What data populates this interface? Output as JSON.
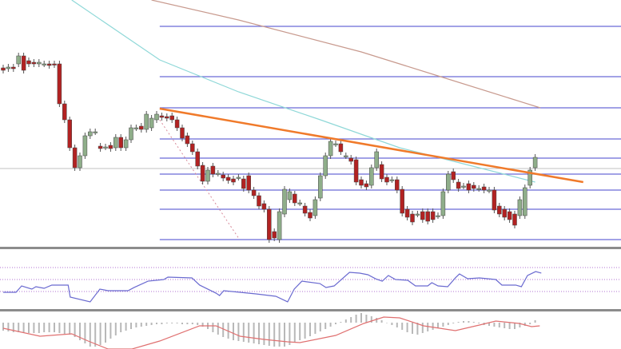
{
  "chart_data": {
    "type": "candlestick",
    "title": "",
    "xlabel": "",
    "ylabel": "",
    "grid": false,
    "colors": {
      "up": "#8fae8a",
      "down": "#b22222",
      "fib_levels": "#6b6bd6",
      "trendline": "#f07a2a",
      "ma_fast": "#8fd8d8",
      "ma_slow": "#c89a8e",
      "reference_line": "#c0c0c0",
      "dotted_line": "#d88a9a",
      "rsi": "#6a6ad0",
      "rsi_levels": "#b070d0",
      "macd_hist": "#b8b8b8",
      "macd_signal": "#e07070",
      "separator": "#8c8c8c"
    },
    "price_panel": {
      "ylim": [
        0,
        310
      ],
      "candles": [
        [
          225,
          222
        ],
        [
          224,
          226
        ],
        [
          226,
          224
        ],
        [
          230,
          240
        ],
        [
          240,
          222
        ],
        [
          234,
          230
        ],
        [
          232,
          230
        ],
        [
          230,
          232
        ],
        [
          230,
          230
        ],
        [
          230,
          228
        ],
        [
          230,
          229
        ],
        [
          230,
          180
        ],
        [
          180,
          160
        ],
        [
          160,
          125
        ],
        [
          125,
          100
        ],
        [
          100,
          115
        ],
        [
          115,
          140
        ],
        [
          140,
          145
        ],
        [
          145,
          145
        ],
        [
          127,
          124
        ],
        [
          126,
          126
        ],
        [
          128,
          124
        ],
        [
          125,
          138
        ],
        [
          138,
          125
        ],
        [
          125,
          135
        ],
        [
          135,
          150
        ],
        [
          150,
          150
        ],
        [
          152,
          148
        ],
        [
          148,
          167
        ],
        [
          150,
          162
        ],
        [
          160,
          167
        ],
        [
          165,
          163
        ],
        [
          164,
          162
        ],
        [
          165,
          160
        ],
        [
          160,
          150
        ],
        [
          150,
          137
        ],
        [
          140,
          130
        ],
        [
          130,
          120
        ],
        [
          120,
          102
        ],
        [
          103,
          83
        ],
        [
          83,
          97
        ],
        [
          102,
          92
        ],
        [
          93,
          93
        ],
        [
          91,
          87
        ],
        [
          88,
          84
        ],
        [
          86,
          82
        ],
        [
          88,
          88
        ],
        [
          86,
          74
        ],
        [
          90,
          72
        ],
        [
          72,
          65
        ],
        [
          65,
          52
        ],
        [
          55,
          48
        ],
        [
          48,
          10
        ],
        [
          20,
          12
        ],
        [
          10,
          45
        ],
        [
          42,
          73
        ],
        [
          60,
          70
        ],
        [
          67,
          56
        ],
        [
          56,
          56
        ],
        [
          52,
          43
        ],
        [
          44,
          37
        ],
        [
          40,
          60
        ],
        [
          62,
          90
        ],
        [
          90,
          115
        ],
        [
          115,
          133
        ],
        [
          130,
          130
        ],
        [
          130,
          120
        ],
        [
          115,
          115
        ],
        [
          112,
          108
        ],
        [
          110,
          82
        ],
        [
          85,
          78
        ],
        [
          80,
          76
        ],
        [
          78,
          100
        ],
        [
          100,
          120
        ],
        [
          104,
          86
        ],
        [
          88,
          82
        ],
        [
          85,
          85
        ],
        [
          85,
          72
        ],
        [
          73,
          43
        ],
        [
          48,
          38
        ],
        [
          42,
          32
        ],
        [
          42,
          42
        ],
        [
          45,
          35
        ],
        [
          45,
          33
        ],
        [
          45,
          35
        ],
        [
          40,
          40
        ],
        [
          40,
          70
        ],
        [
          72,
          92
        ],
        [
          95,
          85
        ],
        [
          82,
          74
        ],
        [
          77,
          77
        ],
        [
          80,
          72
        ],
        [
          78,
          74
        ],
        [
          74,
          74
        ],
        [
          76,
          72
        ],
        [
          72,
          72
        ],
        [
          72,
          47
        ],
        [
          52,
          42
        ],
        [
          48,
          38
        ],
        [
          45,
          35
        ],
        [
          42,
          28
        ],
        [
          40,
          60
        ],
        [
          40,
          75
        ],
        [
          78,
          97
        ],
        [
          100,
          113
        ]
      ],
      "fib_levels": [
        277,
        214,
        175,
        136,
        112,
        92,
        72,
        48,
        10
      ],
      "reference_level": 99,
      "trendline": [
        [
          30.6,
          174
        ],
        [
          113.4,
          82
        ]
      ],
      "dotted_line": [
        [
          30.6,
          160
        ],
        [
          46,
          12
        ]
      ],
      "ma_fast": [
        [
          13.4,
          310
        ],
        [
          30.6,
          235
        ],
        [
          46,
          195
        ],
        [
          62,
          160
        ],
        [
          77.5,
          125
        ],
        [
          93,
          100
        ],
        [
          104,
          82
        ]
      ],
      "ma_slow": [
        [
          29,
          310
        ],
        [
          46,
          285
        ],
        [
          70,
          245
        ],
        [
          85,
          215
        ],
        [
          105,
          175
        ]
      ]
    },
    "rsi_panel": {
      "ylim": [
        0,
        100
      ],
      "levels": [
        70,
        50,
        30
      ],
      "points": [
        [
          0,
          28.7
        ],
        [
          2.5,
          28.7
        ],
        [
          3.6,
          39.3
        ],
        [
          5.6,
          34
        ],
        [
          6.4,
          38
        ],
        [
          8,
          35.3
        ],
        [
          9.5,
          40.7
        ],
        [
          12.7,
          40.7
        ],
        [
          13.1,
          20.7
        ],
        [
          17,
          12.7
        ],
        [
          18.9,
          34
        ],
        [
          20.5,
          31.3
        ],
        [
          24.4,
          31.3
        ],
        [
          25.6,
          36.7
        ],
        [
          28.3,
          47.3
        ],
        [
          31.4,
          50
        ],
        [
          32.2,
          54
        ],
        [
          36.9,
          52.7
        ],
        [
          38.4,
          40.7
        ],
        [
          41.6,
          27.3
        ],
        [
          42.3,
          23.3
        ],
        [
          43.1,
          31.3
        ],
        [
          46.3,
          28.7
        ],
        [
          49.4,
          26
        ],
        [
          53.3,
          22
        ],
        [
          55.6,
          12.7
        ],
        [
          56.9,
          34
        ],
        [
          58.4,
          47.3
        ],
        [
          61.9,
          43.3
        ],
        [
          63.1,
          36.7
        ],
        [
          64.7,
          39.3
        ],
        [
          67.7,
          62
        ],
        [
          69.7,
          60.7
        ],
        [
          71.3,
          58
        ],
        [
          72.8,
          51.3
        ],
        [
          74.1,
          47.3
        ],
        [
          75.3,
          56.7
        ],
        [
          76.7,
          50
        ],
        [
          79.1,
          48.7
        ],
        [
          80.6,
          39.3
        ],
        [
          83,
          39.3
        ],
        [
          83.8,
          44.7
        ],
        [
          85,
          39.3
        ],
        [
          86.9,
          38
        ],
        [
          88.4,
          52.7
        ],
        [
          89.2,
          59.3
        ],
        [
          90.8,
          51.3
        ],
        [
          93.1,
          52.7
        ],
        [
          96.3,
          50
        ],
        [
          97.5,
          40.7
        ],
        [
          100.2,
          40.7
        ],
        [
          101.3,
          38
        ],
        [
          102.5,
          56.7
        ],
        [
          104.1,
          63.3
        ],
        [
          105.2,
          60.7
        ]
      ]
    },
    "macd_panel": {
      "histogram": [
        -10,
        -11,
        -12,
        -12,
        -12,
        -13,
        -13,
        -13,
        -12,
        -12,
        -12,
        -13,
        -14,
        -15,
        -18,
        -22,
        -26,
        -30,
        -30,
        -28,
        -25,
        -20,
        -16,
        -12,
        -10,
        -8,
        -6,
        -5,
        -4,
        -3,
        -2,
        -2,
        -1,
        -1,
        -1,
        -2,
        -2,
        -2,
        -3,
        -5,
        -8,
        -12,
        -15,
        -18,
        -20,
        -22,
        -23,
        -24,
        -25,
        -26,
        -27,
        -28,
        -29,
        -30,
        -30,
        -30,
        -28,
        -25,
        -22,
        -20,
        -17,
        -14,
        -11,
        -8,
        -5,
        -2,
        1,
        4,
        7,
        10,
        12,
        10,
        8,
        6,
        3,
        0,
        -3,
        -6,
        -9,
        -12,
        -14,
        -15,
        -13,
        -11,
        -9,
        -7,
        -5,
        -3,
        -1,
        1,
        2,
        2,
        1,
        -1,
        -3,
        -4,
        -5,
        -6,
        -7,
        -8,
        -8,
        -6,
        -4,
        -2,
        3
      ],
      "signal": [
        [
          0,
          -7
        ],
        [
          7.2,
          -17
        ],
        [
          13.4,
          -14
        ],
        [
          16.6,
          -23
        ],
        [
          20.5,
          -33
        ],
        [
          25.2,
          -33
        ],
        [
          30.6,
          -23
        ],
        [
          38.4,
          -4
        ],
        [
          41.6,
          -4
        ],
        [
          46.3,
          -17
        ],
        [
          51,
          -21
        ],
        [
          55.6,
          -24
        ],
        [
          58,
          -25
        ],
        [
          65,
          -16
        ],
        [
          70.5,
          -1
        ],
        [
          74.4,
          7
        ],
        [
          77.5,
          6
        ],
        [
          82.2,
          -4
        ],
        [
          88.4,
          -10
        ],
        [
          93.1,
          -3
        ],
        [
          96.3,
          2
        ],
        [
          100.9,
          -1
        ],
        [
          103.3,
          -5
        ],
        [
          104.9,
          -4
        ]
      ]
    }
  }
}
